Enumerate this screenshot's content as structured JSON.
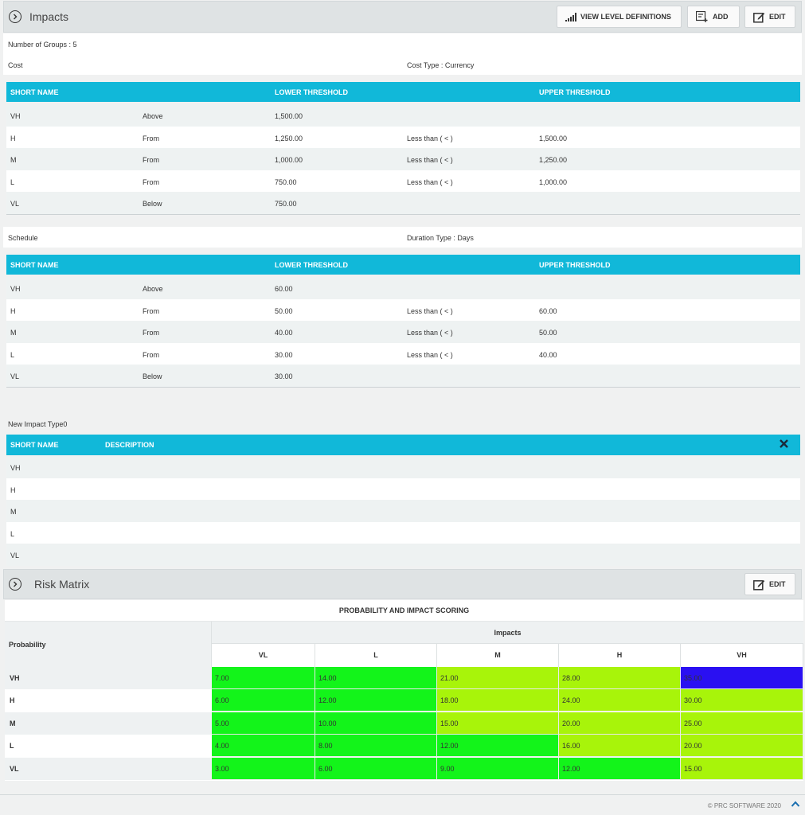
{
  "impacts": {
    "title": "Impacts",
    "view_levels_label": "VIEW LEVEL DEFINITIONS",
    "add_label": "ADD",
    "edit_label": "EDIT",
    "number_of_groups": "Number of Groups : 5"
  },
  "cost": {
    "name": "Cost",
    "type_label": "Cost Type : Currency",
    "headers": {
      "short_name": "SHORT NAME",
      "lower": "LOWER THRESHOLD",
      "upper": "UPPER THRESHOLD"
    },
    "rows": [
      {
        "short": "VH",
        "op": "Above",
        "lower": "1,500.00",
        "rel": "",
        "upper": ""
      },
      {
        "short": "H",
        "op": "From",
        "lower": "1,250.00",
        "rel": "Less than ( < )",
        "upper": "1,500.00"
      },
      {
        "short": "M",
        "op": "From",
        "lower": "1,000.00",
        "rel": "Less than ( < )",
        "upper": "1,250.00"
      },
      {
        "short": "L",
        "op": "From",
        "lower": "750.00",
        "rel": "Less than ( < )",
        "upper": "1,000.00"
      },
      {
        "short": "VL",
        "op": "Below",
        "lower": "750.00",
        "rel": "",
        "upper": ""
      }
    ]
  },
  "schedule": {
    "name": "Schedule",
    "type_label": "Duration Type : Days",
    "headers": {
      "short_name": "SHORT NAME",
      "lower": "LOWER THRESHOLD",
      "upper": "UPPER THRESHOLD"
    },
    "rows": [
      {
        "short": "VH",
        "op": "Above",
        "lower": "60.00",
        "rel": "",
        "upper": ""
      },
      {
        "short": "H",
        "op": "From",
        "lower": "50.00",
        "rel": "Less than ( < )",
        "upper": "60.00"
      },
      {
        "short": "M",
        "op": "From",
        "lower": "40.00",
        "rel": "Less than ( < )",
        "upper": "50.00"
      },
      {
        "short": "L",
        "op": "From",
        "lower": "30.00",
        "rel": "Less than ( < )",
        "upper": "40.00"
      },
      {
        "short": "VL",
        "op": "Below",
        "lower": "30.00",
        "rel": "",
        "upper": ""
      }
    ]
  },
  "new_impact": {
    "name": "New Impact Type0",
    "headers": {
      "short_name": "SHORT NAME",
      "description": "DESCRIPTION"
    },
    "rows": [
      {
        "short": "VH"
      },
      {
        "short": "H"
      },
      {
        "short": "M"
      },
      {
        "short": "L"
      },
      {
        "short": "VL"
      }
    ]
  },
  "risk_matrix": {
    "title": "Risk Matrix",
    "edit_label": "EDIT",
    "table_title": "PROBABILITY AND IMPACT SCORING",
    "probability_label": "Probability",
    "impacts_label": "Impacts",
    "columns": [
      "VL",
      "L",
      "M",
      "H",
      "VH"
    ],
    "rows": [
      {
        "label": "VH",
        "cells": [
          {
            "v": "7.00",
            "c": "#13f41a"
          },
          {
            "v": "14.00",
            "c": "#13f41a"
          },
          {
            "v": "21.00",
            "c": "#a8f40a"
          },
          {
            "v": "28.00",
            "c": "#a8f40a"
          },
          {
            "v": "35.00",
            "c": "#2a10f2"
          }
        ]
      },
      {
        "label": "H",
        "cells": [
          {
            "v": "6.00",
            "c": "#13f41a"
          },
          {
            "v": "12.00",
            "c": "#13f41a"
          },
          {
            "v": "18.00",
            "c": "#a8f40a"
          },
          {
            "v": "24.00",
            "c": "#a8f40a"
          },
          {
            "v": "30.00",
            "c": "#a8f40a"
          }
        ]
      },
      {
        "label": "M",
        "cells": [
          {
            "v": "5.00",
            "c": "#13f41a"
          },
          {
            "v": "10.00",
            "c": "#13f41a"
          },
          {
            "v": "15.00",
            "c": "#a8f40a"
          },
          {
            "v": "20.00",
            "c": "#a8f40a"
          },
          {
            "v": "25.00",
            "c": "#a8f40a"
          }
        ]
      },
      {
        "label": "L",
        "cells": [
          {
            "v": "4.00",
            "c": "#13f41a"
          },
          {
            "v": "8.00",
            "c": "#13f41a"
          },
          {
            "v": "12.00",
            "c": "#13f41a"
          },
          {
            "v": "16.00",
            "c": "#a8f40a"
          },
          {
            "v": "20.00",
            "c": "#a8f40a"
          }
        ]
      },
      {
        "label": "VL",
        "cells": [
          {
            "v": "3.00",
            "c": "#13f41a"
          },
          {
            "v": "6.00",
            "c": "#13f41a"
          },
          {
            "v": "9.00",
            "c": "#13f41a"
          },
          {
            "v": "12.00",
            "c": "#13f41a"
          },
          {
            "v": "15.00",
            "c": "#a8f40a"
          }
        ]
      }
    ]
  },
  "footer": {
    "copyright": "© PRC SOFTWARE 2020"
  },
  "colors": {
    "table_header": "#11b8d9",
    "green": "#13f41a",
    "lime": "#a8f40a",
    "blue": "#2a10f2"
  }
}
